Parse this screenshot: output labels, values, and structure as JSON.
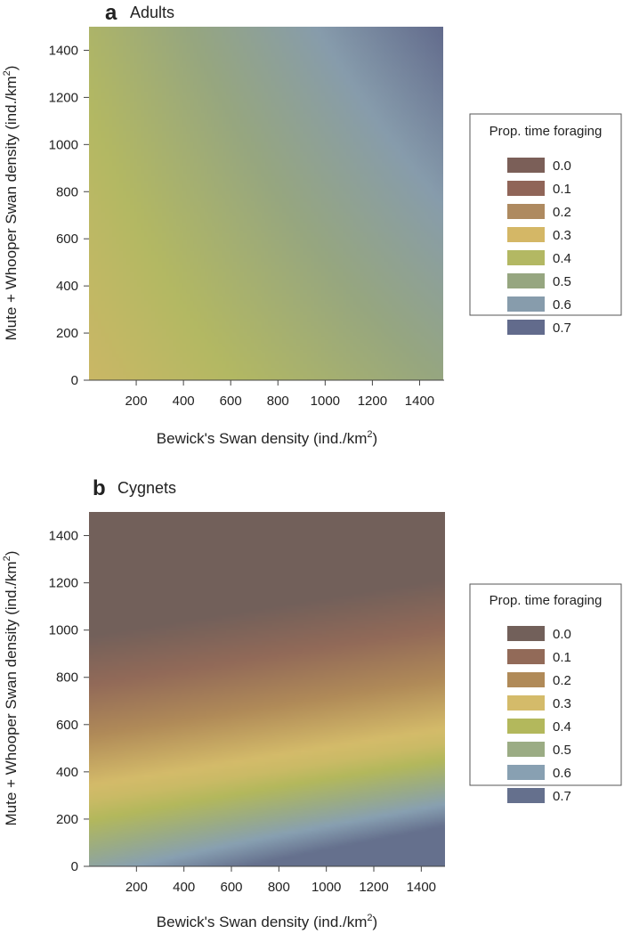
{
  "chart_data": [
    {
      "type": "heatmap",
      "panel_letter": "a",
      "title": "Adults",
      "xlabel_prefix": "Bewick's Swan density (ind./km",
      "ylabel_prefix": "Mute + Whooper Swan density (ind./km",
      "label_superscript": "2",
      "label_suffix": ")",
      "xlim": [
        0,
        1500
      ],
      "ylim": [
        0,
        1500
      ],
      "xticks": [
        200,
        400,
        600,
        800,
        1000,
        1200,
        1400
      ],
      "yticks": [
        0,
        200,
        400,
        600,
        800,
        1000,
        1200,
        1400
      ],
      "corner_values": {
        "x0_y0": 0.33,
        "x1500_y0": 0.5,
        "x0_y1500": 0.42,
        "x1500_y1500": 0.7
      },
      "legend": {
        "title": "Prop. time foraging",
        "position": "right",
        "entries": [
          {
            "label": "0.0",
            "value": 0.0,
            "color": "#7b5f58"
          },
          {
            "label": "0.1",
            "value": 0.1,
            "color": "#906558"
          },
          {
            "label": "0.2",
            "value": 0.2,
            "color": "#ae8a60"
          },
          {
            "label": "0.3",
            "value": 0.3,
            "color": "#d4b766"
          },
          {
            "label": "0.4",
            "value": 0.4,
            "color": "#b3b863"
          },
          {
            "label": "0.5",
            "value": 0.5,
            "color": "#96a680"
          },
          {
            "label": "0.6",
            "value": 0.6,
            "color": "#879cac"
          },
          {
            "label": "0.7",
            "value": 0.7,
            "color": "#626b8c"
          }
        ]
      }
    },
    {
      "type": "heatmap",
      "panel_letter": "b",
      "title": "Cygnets",
      "xlabel_prefix": "Bewick's Swan density (ind./km",
      "ylabel_prefix": "Mute + Whooper Swan density (ind./km",
      "label_superscript": "2",
      "label_suffix": ")",
      "xlim": [
        0,
        1500
      ],
      "ylim": [
        0,
        1500
      ],
      "xticks": [
        200,
        400,
        600,
        800,
        1000,
        1200,
        1400
      ],
      "yticks": [
        0,
        200,
        400,
        600,
        800,
        1000,
        1200,
        1400
      ],
      "ridge": {
        "value": 0.33,
        "y_at_x0": 280,
        "y_at_x1500": 520,
        "low_slope": 0.0011,
        "high_slope": 0.00082
      },
      "legend": {
        "title": "Prop. time foraging",
        "position": "right",
        "entries": [
          {
            "label": "0.0",
            "value": 0.0,
            "color": "#72605a"
          },
          {
            "label": "0.1",
            "value": 0.1,
            "color": "#926a58"
          },
          {
            "label": "0.2",
            "value": 0.2,
            "color": "#b08a58"
          },
          {
            "label": "0.3",
            "value": 0.3,
            "color": "#d4bb6a"
          },
          {
            "label": "0.4",
            "value": 0.4,
            "color": "#b3b85c"
          },
          {
            "label": "0.5",
            "value": 0.5,
            "color": "#9bac84"
          },
          {
            "label": "0.6",
            "value": 0.6,
            "color": "#88a0b2"
          },
          {
            "label": "0.7",
            "value": 0.7,
            "color": "#65708d"
          }
        ]
      }
    }
  ]
}
